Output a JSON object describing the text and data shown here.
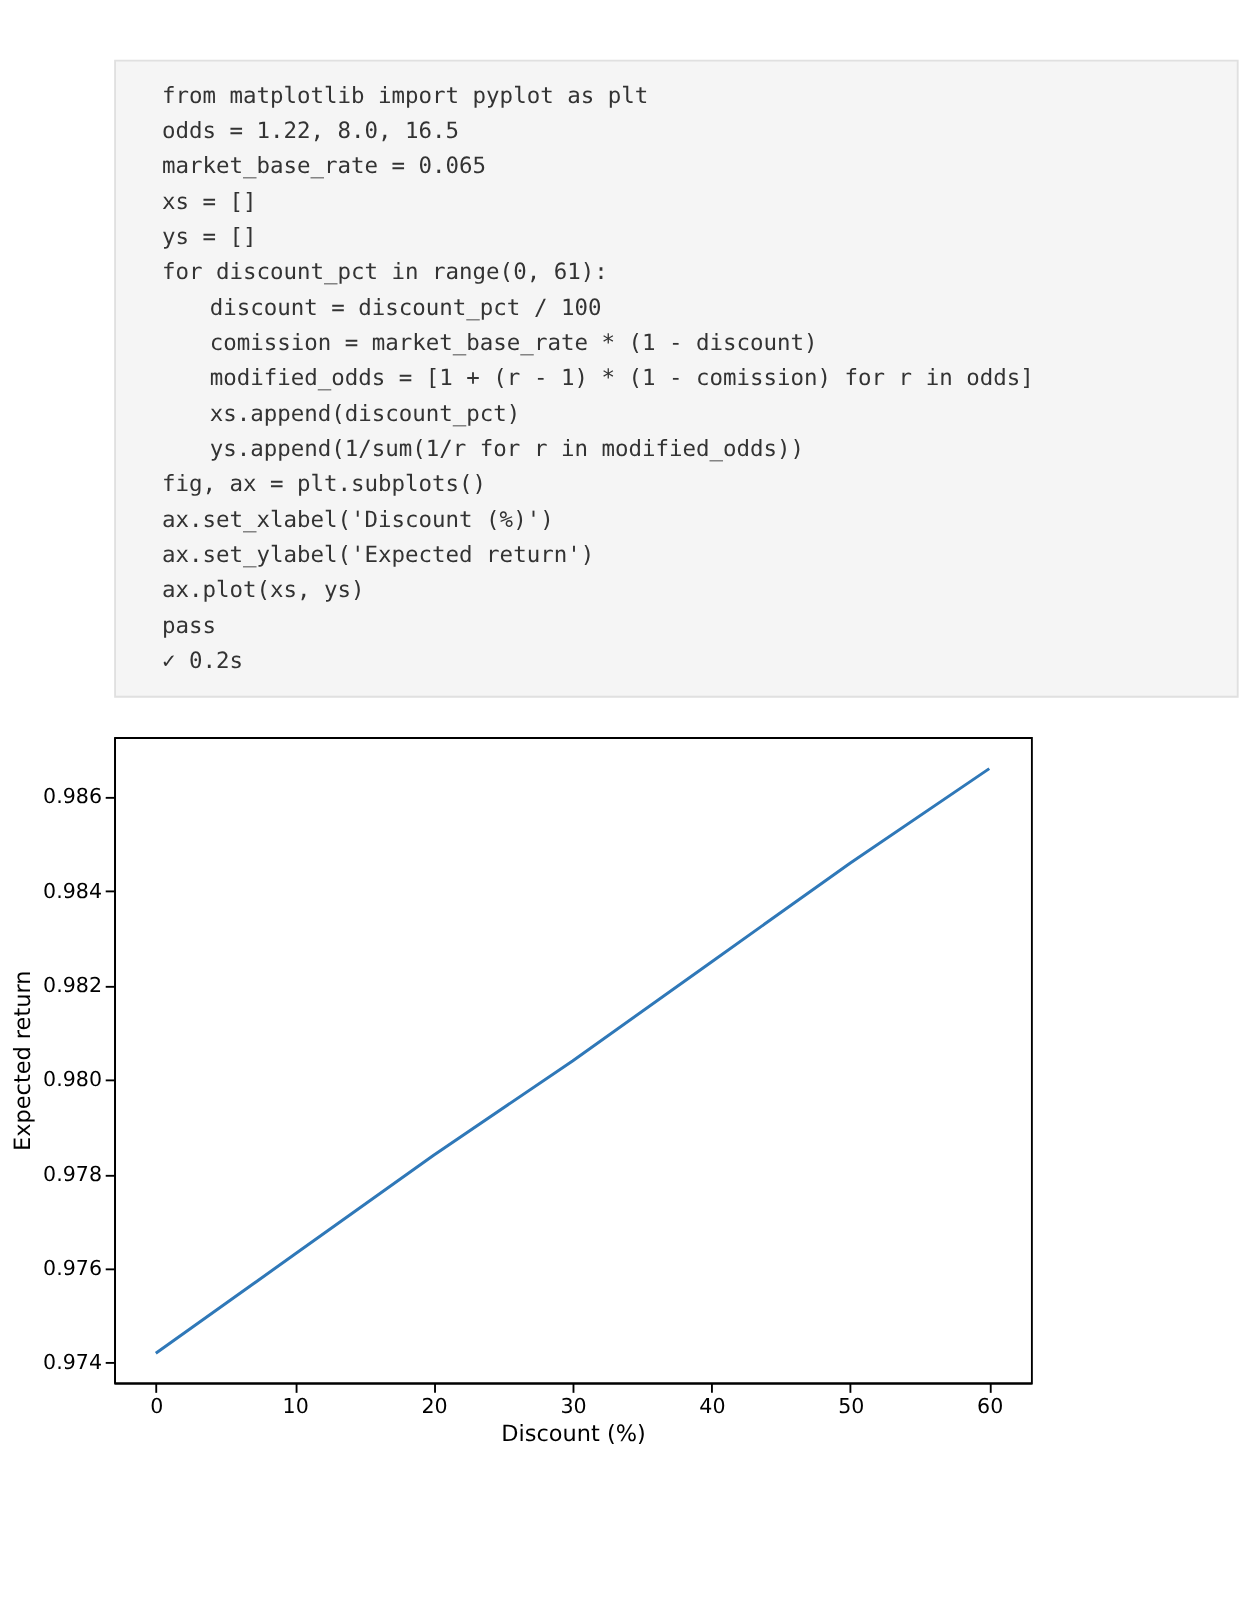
{
  "chart_data": {
    "type": "line",
    "xlabel": "Discount (%)",
    "ylabel": "Expected return",
    "x": [
      0,
      10,
      20,
      30,
      40,
      50,
      60
    ],
    "series": [
      {
        "color": "#2f78b8",
        "values": [
          0.9742,
          0.9763,
          0.9784,
          0.9804,
          0.9825,
          0.9846,
          0.9866
        ]
      }
    ],
    "xlim": [
      -3,
      63
    ],
    "xticks": [
      0,
      10,
      20,
      30,
      40,
      50,
      60
    ],
    "ylim": [
      0.97358,
      0.98727
    ],
    "yticks": [
      {
        "value": 0.974,
        "label": "0.974"
      },
      {
        "value": 0.976,
        "label": "0.976"
      },
      {
        "value": 0.978,
        "label": "0.978"
      },
      {
        "value": 0.98,
        "label": "0.980"
      },
      {
        "value": 0.982,
        "label": "0.982"
      },
      {
        "value": 0.984,
        "label": "0.984"
      },
      {
        "value": 0.986,
        "label": "0.986"
      }
    ],
    "grid": false,
    "marker": "none",
    "line_style": "solid",
    "annotations": [
      "from matplotlib import pyplot as plt",
      "odds = 1.22, 8.0, 16.5",
      "market_base_rate = 0.065",
      "xs = []",
      "ys = []",
      "for discount_pct in range(0, 61):",
      "    discount = discount_pct / 100",
      "    comission = market_base_rate * (1 - discount)",
      "    modified_odds = [1 + (r - 1) * (1 - comission) for r in odds]",
      "    xs.append(discount_pct)",
      "    ys.append(1/sum(1/r for r in modified_odds))",
      "fig, ax = plt.subplots()",
      "ax.set_xlabel('Discount (%)')",
      "ax.set_ylabel('Expected return')",
      "ax.plot(xs, ys)",
      "pass",
      "✓ 0.2s"
    ]
  }
}
